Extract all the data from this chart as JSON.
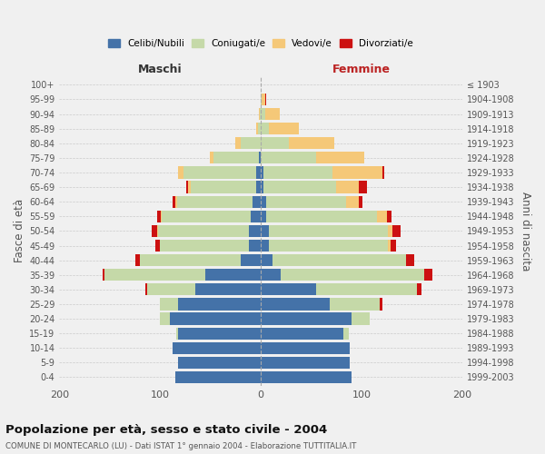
{
  "age_groups": [
    "0-4",
    "5-9",
    "10-14",
    "15-19",
    "20-24",
    "25-29",
    "30-34",
    "35-39",
    "40-44",
    "45-49",
    "50-54",
    "55-59",
    "60-64",
    "65-69",
    "70-74",
    "75-79",
    "80-84",
    "85-89",
    "90-94",
    "95-99",
    "100+"
  ],
  "birth_years": [
    "1999-2003",
    "1994-1998",
    "1989-1993",
    "1984-1988",
    "1979-1983",
    "1974-1978",
    "1969-1973",
    "1964-1968",
    "1959-1963",
    "1954-1958",
    "1949-1953",
    "1944-1948",
    "1939-1943",
    "1934-1938",
    "1929-1933",
    "1924-1928",
    "1919-1923",
    "1914-1918",
    "1909-1913",
    "1904-1908",
    "≤ 1903"
  ],
  "colors": {
    "celibi": "#4472a8",
    "coniugati": "#c5d9a8",
    "vedovi": "#f5c878",
    "divorziati": "#cc1111"
  },
  "maschi_celibi": [
    85,
    82,
    88,
    82,
    90,
    82,
    65,
    55,
    20,
    12,
    12,
    10,
    8,
    5,
    5,
    2,
    0,
    0,
    0,
    0,
    0
  ],
  "maschi_coniugati": [
    0,
    0,
    0,
    2,
    10,
    18,
    48,
    100,
    100,
    88,
    90,
    88,
    75,
    65,
    72,
    45,
    20,
    3,
    1,
    0,
    0
  ],
  "maschi_vedovi": [
    0,
    0,
    0,
    0,
    0,
    0,
    0,
    0,
    0,
    0,
    1,
    1,
    2,
    2,
    5,
    4,
    5,
    2,
    1,
    0,
    0
  ],
  "maschi_divorziati": [
    0,
    0,
    0,
    0,
    0,
    0,
    2,
    2,
    5,
    5,
    5,
    4,
    3,
    2,
    0,
    0,
    0,
    0,
    0,
    0,
    0
  ],
  "femmine_celibi": [
    90,
    88,
    88,
    82,
    90,
    68,
    55,
    20,
    12,
    8,
    8,
    5,
    5,
    3,
    3,
    0,
    0,
    0,
    0,
    0,
    0
  ],
  "femmine_coniugati": [
    0,
    0,
    0,
    5,
    18,
    50,
    100,
    142,
    132,
    118,
    118,
    110,
    80,
    72,
    68,
    55,
    28,
    8,
    4,
    1,
    0
  ],
  "femmine_vedovi": [
    0,
    0,
    0,
    0,
    0,
    0,
    0,
    0,
    0,
    3,
    5,
    10,
    12,
    22,
    50,
    48,
    45,
    30,
    15,
    3,
    0
  ],
  "femmine_divorziati": [
    0,
    0,
    0,
    0,
    0,
    3,
    5,
    8,
    8,
    5,
    8,
    5,
    4,
    8,
    2,
    0,
    0,
    0,
    0,
    1,
    0
  ],
  "xlim": 200,
  "title": "Popolazione per età, sesso e stato civile - 2004",
  "subtitle": "COMUNE DI MONTECARLO (LU) - Dati ISTAT 1° gennaio 2004 - Elaborazione TUTTITALIA.IT",
  "ylabel_left": "Fasce di età",
  "ylabel_right": "Anni di nascita",
  "legend_labels": [
    "Celibi/Nubili",
    "Coniugati/e",
    "Vedovi/e",
    "Divorziati/e"
  ],
  "maschi_label": "Maschi",
  "femmine_label": "Femmine",
  "background_color": "#f0f0f0"
}
